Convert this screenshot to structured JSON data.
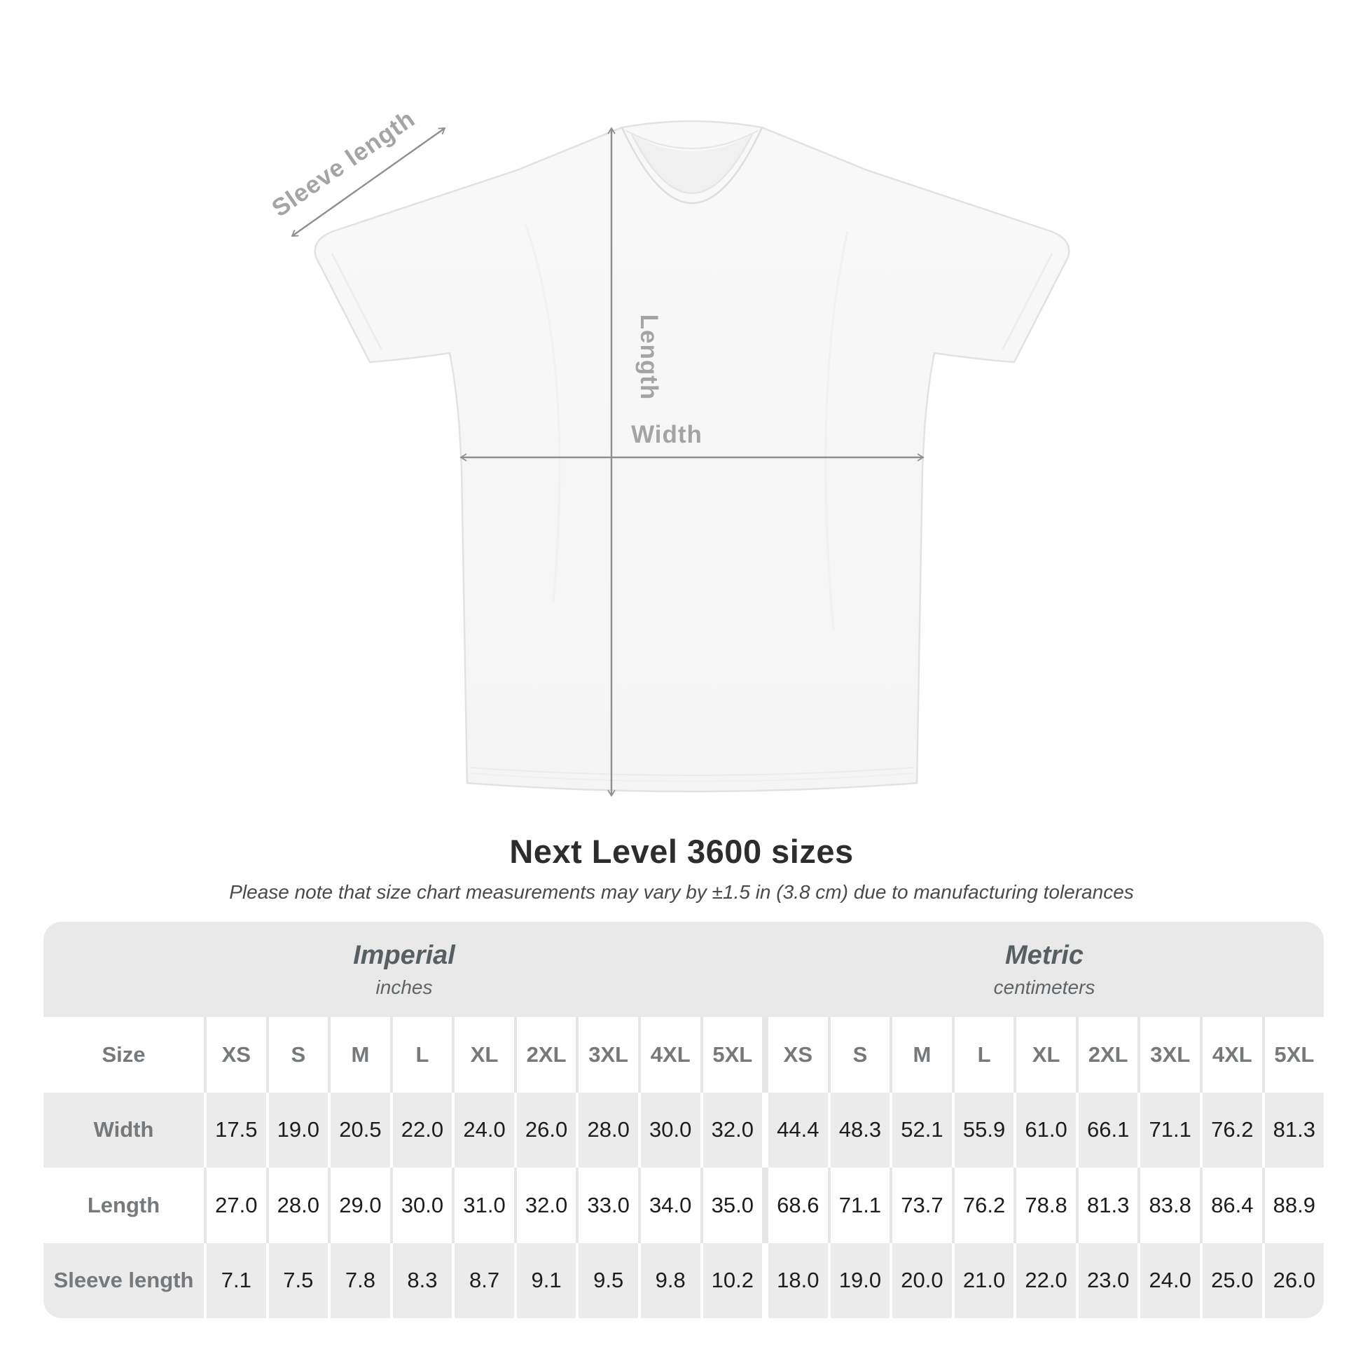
{
  "diagram": {
    "labels": {
      "sleeve_length": "Sleeve length",
      "length": "Length",
      "width": "Width"
    }
  },
  "title": "Next Level 3600 sizes",
  "subtitle": "Please note that size chart measurements may vary by ±1.5 in (3.8 cm) due to manufacturing tolerances",
  "table": {
    "unit_groups": [
      {
        "label": "Imperial",
        "sublabel": "inches"
      },
      {
        "label": "Metric",
        "sublabel": "centimeters"
      }
    ],
    "size_header": "Size",
    "sizes": [
      "XS",
      "S",
      "M",
      "L",
      "XL",
      "2XL",
      "3XL",
      "4XL",
      "5XL"
    ],
    "rows": [
      {
        "label": "Width",
        "imperial": [
          "17.5",
          "19.0",
          "20.5",
          "22.0",
          "24.0",
          "26.0",
          "28.0",
          "30.0",
          "32.0"
        ],
        "metric": [
          "44.4",
          "48.3",
          "52.1",
          "55.9",
          "61.0",
          "66.1",
          "71.1",
          "76.2",
          "81.3"
        ]
      },
      {
        "label": "Length",
        "imperial": [
          "27.0",
          "28.0",
          "29.0",
          "30.0",
          "31.0",
          "32.0",
          "33.0",
          "34.0",
          "35.0"
        ],
        "metric": [
          "68.6",
          "71.1",
          "73.7",
          "76.2",
          "78.8",
          "81.3",
          "83.8",
          "86.4",
          "88.9"
        ]
      },
      {
        "label": "Sleeve length",
        "imperial": [
          "7.1",
          "7.5",
          "7.8",
          "8.3",
          "8.7",
          "9.1",
          "9.5",
          "9.8",
          "10.2"
        ],
        "metric": [
          "18.0",
          "19.0",
          "20.0",
          "21.0",
          "22.0",
          "23.0",
          "24.0",
          "25.0",
          "26.0"
        ]
      }
    ]
  },
  "chart_data": {
    "type": "table",
    "title": "Next Level 3600 sizes",
    "note": "Please note that size chart measurements may vary by ±1.5 in (3.8 cm) due to manufacturing tolerances",
    "column_groups": [
      {
        "label": "Imperial",
        "unit": "inches",
        "sizes": [
          "XS",
          "S",
          "M",
          "L",
          "XL",
          "2XL",
          "3XL",
          "4XL",
          "5XL"
        ]
      },
      {
        "label": "Metric",
        "unit": "centimeters",
        "sizes": [
          "XS",
          "S",
          "M",
          "L",
          "XL",
          "2XL",
          "3XL",
          "4XL",
          "5XL"
        ]
      }
    ],
    "rows": [
      {
        "label": "Width",
        "imperial": [
          17.5,
          19.0,
          20.5,
          22.0,
          24.0,
          26.0,
          28.0,
          30.0,
          32.0
        ],
        "metric": [
          44.4,
          48.3,
          52.1,
          55.9,
          61.0,
          66.1,
          71.1,
          76.2,
          81.3
        ]
      },
      {
        "label": "Length",
        "imperial": [
          27.0,
          28.0,
          29.0,
          30.0,
          31.0,
          32.0,
          33.0,
          34.0,
          35.0
        ],
        "metric": [
          68.6,
          71.1,
          73.7,
          76.2,
          78.8,
          81.3,
          83.8,
          86.4,
          88.9
        ]
      },
      {
        "label": "Sleeve length",
        "imperial": [
          7.1,
          7.5,
          7.8,
          8.3,
          8.7,
          9.1,
          9.5,
          9.8,
          10.2
        ],
        "metric": [
          18.0,
          19.0,
          20.0,
          21.0,
          22.0,
          23.0,
          24.0,
          25.0,
          26.0
        ]
      }
    ]
  },
  "colors": {
    "accent_gray_label": "#75797c",
    "table_bg": "#e9e9e9",
    "row_gray": "#ebebeb",
    "value_text": "#1d1d1d",
    "diagram_label": "#a2a4a6",
    "arrow": "#8d8f90"
  }
}
